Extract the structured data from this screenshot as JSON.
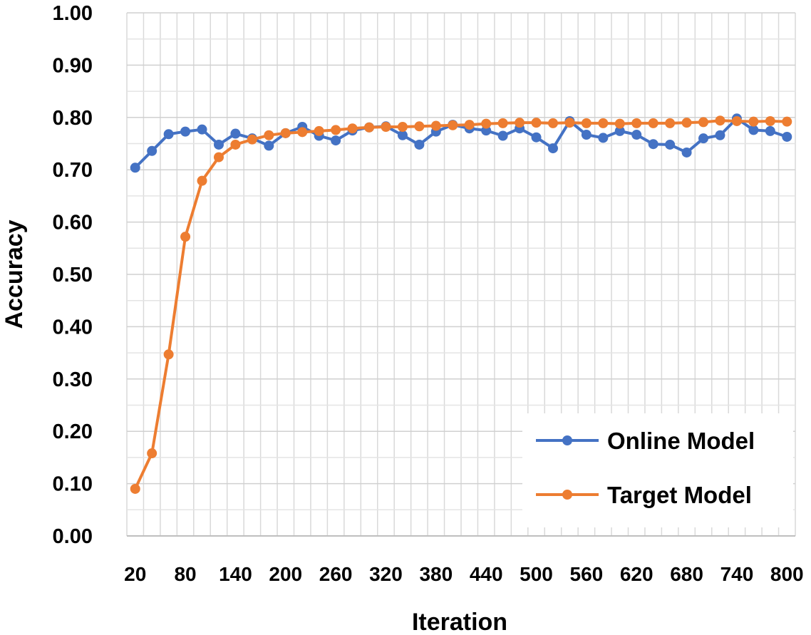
{
  "chart_data": {
    "type": "line",
    "xlabel": "Iteration",
    "ylabel": "Accuracy",
    "ylim": [
      0,
      1
    ],
    "yticks": [
      "0.00",
      "0.10",
      "0.20",
      "0.30",
      "0.40",
      "0.50",
      "0.60",
      "0.70",
      "0.80",
      "0.90",
      "1.00"
    ],
    "xticks": [
      "20",
      "80",
      "140",
      "200",
      "260",
      "320",
      "380",
      "440",
      "500",
      "560",
      "620",
      "680",
      "740",
      "800"
    ],
    "x": [
      20,
      40,
      60,
      80,
      100,
      120,
      140,
      160,
      180,
      200,
      220,
      240,
      260,
      280,
      300,
      320,
      340,
      360,
      380,
      400,
      420,
      440,
      460,
      480,
      500,
      520,
      540,
      560,
      580,
      600,
      620,
      640,
      660,
      680,
      700,
      720,
      740,
      760,
      780,
      800
    ],
    "grid": true,
    "legend_position": "bottom-right",
    "series": [
      {
        "name": "Online Model",
        "color": "#4472C4",
        "values": [
          0.704,
          0.736,
          0.768,
          0.773,
          0.777,
          0.748,
          0.769,
          0.76,
          0.746,
          0.77,
          0.782,
          0.765,
          0.756,
          0.775,
          0.781,
          0.783,
          0.766,
          0.748,
          0.773,
          0.786,
          0.779,
          0.775,
          0.765,
          0.779,
          0.762,
          0.741,
          0.793,
          0.767,
          0.761,
          0.774,
          0.767,
          0.749,
          0.748,
          0.733,
          0.76,
          0.766,
          0.798,
          0.776,
          0.774,
          0.763
        ]
      },
      {
        "name": "Target Model",
        "color": "#ED7D31",
        "values": [
          0.09,
          0.158,
          0.347,
          0.572,
          0.679,
          0.724,
          0.748,
          0.758,
          0.766,
          0.77,
          0.772,
          0.774,
          0.776,
          0.779,
          0.781,
          0.782,
          0.782,
          0.783,
          0.784,
          0.785,
          0.786,
          0.788,
          0.789,
          0.79,
          0.79,
          0.789,
          0.79,
          0.789,
          0.789,
          0.788,
          0.789,
          0.789,
          0.789,
          0.79,
          0.791,
          0.794,
          0.793,
          0.792,
          0.793,
          0.792
        ]
      }
    ]
  }
}
